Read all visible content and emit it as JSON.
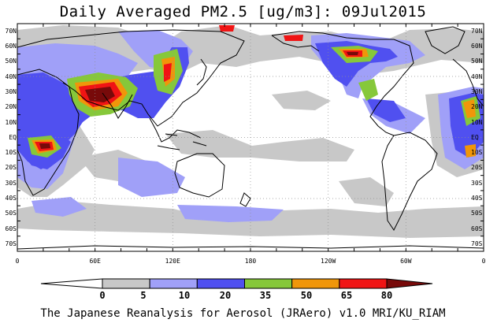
{
  "title": "Daily Averaged PM2.5 [ug/m3]: 09Jul2015",
  "footer": "The Japanese Reanalysis for Aerosol (JRAero) v1.0 MRI/KU_RIAM",
  "map": {
    "projection": "plate carree, Pacific-centered (0 to 360)",
    "lon_range": [
      0,
      360
    ],
    "lat_range": [
      -75,
      75
    ],
    "lat_labels": [
      "70N",
      "60N",
      "50N",
      "40N",
      "30N",
      "20N",
      "10N",
      "EQ",
      "10S",
      "20S",
      "30S",
      "40S",
      "50S",
      "60S",
      "70S"
    ],
    "lon_labels": [
      "0",
      "60E",
      "120E",
      "180",
      "120W",
      "60W",
      "0"
    ],
    "ocean_color": "#ffffff",
    "coastline_color": "#000000",
    "grid_style": "dotted"
  },
  "colorbar": {
    "tick_labels": [
      "0",
      "5",
      "10",
      "20",
      "35",
      "50",
      "65",
      "80"
    ],
    "levels": [
      0,
      5,
      10,
      20,
      35,
      50,
      65,
      80
    ],
    "colors": [
      "#ffffff",
      "#c8c8c8",
      "#a0a0f8",
      "#5050f0",
      "#86c83a",
      "#f0960a",
      "#f01414",
      "#780a0a"
    ]
  }
}
